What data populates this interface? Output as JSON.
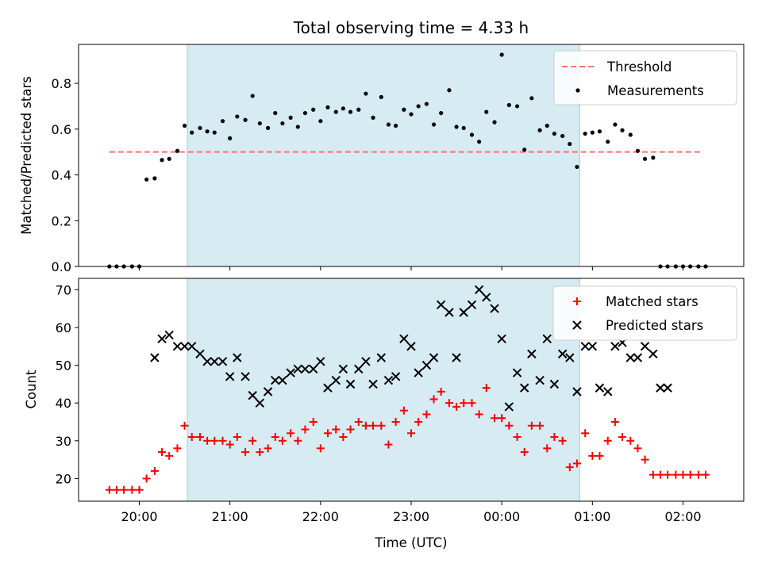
{
  "chart_data": [
    {
      "type": "scatter",
      "title": "Total observing time = 4.33 h",
      "xlabel": "",
      "ylabel": "Matched/Predicted stars",
      "xlim": [
        -0.67,
        6.67
      ],
      "ylim": [
        0,
        0.97
      ],
      "yticks": [
        0.0,
        0.2,
        0.4,
        0.6,
        0.8
      ],
      "ytick_labels": [
        "0.0",
        "0.2",
        "0.4",
        "0.6",
        "0.8"
      ],
      "observing_window": [
        0.53,
        4.86
      ],
      "threshold": {
        "name": "Threshold",
        "value": 0.5,
        "x_range": [
          -0.33,
          6.2
        ],
        "color": "#ff7070",
        "style": "dashed"
      },
      "series": [
        {
          "name": "Measurements",
          "color": "#000000",
          "x": [
            -0.33,
            -0.25,
            -0.17,
            -0.08,
            0.0,
            0.08,
            0.17,
            0.25,
            0.33,
            0.42,
            0.5,
            0.58,
            0.67,
            0.75,
            0.83,
            0.92,
            1.0,
            1.08,
            1.17,
            1.25,
            1.33,
            1.42,
            1.5,
            1.58,
            1.67,
            1.75,
            1.83,
            1.92,
            2.0,
            2.08,
            2.17,
            2.25,
            2.33,
            2.42,
            2.5,
            2.58,
            2.67,
            2.75,
            2.83,
            2.92,
            3.0,
            3.08,
            3.17,
            3.25,
            3.33,
            3.42,
            3.5,
            3.58,
            3.67,
            3.75,
            3.83,
            3.92,
            4.0,
            4.08,
            4.17,
            4.25,
            4.33,
            4.42,
            4.5,
            4.58,
            4.67,
            4.75,
            4.83,
            4.92,
            5.0,
            5.08,
            5.17,
            5.25,
            5.33,
            5.42,
            5.5,
            5.58,
            5.67,
            5.75,
            5.83,
            5.92,
            6.0,
            6.08,
            6.17,
            6.25
          ],
          "values": [
            0.0,
            0.0,
            0.0,
            0.0,
            0.0,
            0.38,
            0.385,
            0.465,
            0.47,
            0.505,
            0.615,
            0.585,
            0.605,
            0.59,
            0.585,
            0.635,
            0.56,
            0.655,
            0.64,
            0.745,
            0.625,
            0.605,
            0.67,
            0.625,
            0.65,
            0.61,
            0.67,
            0.685,
            0.635,
            0.695,
            0.675,
            0.69,
            0.675,
            0.685,
            0.755,
            0.65,
            0.74,
            0.62,
            0.615,
            0.685,
            0.665,
            0.7,
            0.71,
            0.62,
            0.67,
            0.77,
            0.61,
            0.605,
            0.575,
            0.545,
            0.675,
            0.63,
            0.925,
            0.705,
            0.7,
            0.51,
            0.735,
            0.595,
            0.615,
            0.58,
            0.57,
            0.535,
            0.435,
            0.58,
            0.585,
            0.59,
            0.545,
            0.62,
            0.595,
            0.575,
            0.505,
            0.47,
            0.475,
            0.0,
            0.0,
            0.0,
            0.0,
            0.0,
            0.0,
            0.0
          ]
        }
      ],
      "legend": {
        "position": "top-right",
        "entries": [
          "Threshold",
          "Measurements"
        ]
      }
    },
    {
      "type": "scatter",
      "title": "",
      "xlabel": "Time (UTC)",
      "ylabel": "Count",
      "xlim": [
        -0.67,
        6.67
      ],
      "ylim": [
        14,
        73
      ],
      "xticks": [
        0,
        1,
        2,
        3,
        4,
        5,
        6
      ],
      "xtick_labels": [
        "20:00",
        "21:00",
        "22:00",
        "23:00",
        "00:00",
        "01:00",
        "02:00"
      ],
      "yticks": [
        20,
        30,
        40,
        50,
        60,
        70
      ],
      "ytick_labels": [
        "20",
        "30",
        "40",
        "50",
        "60",
        "70"
      ],
      "observing_window": [
        0.53,
        4.86
      ],
      "series": [
        {
          "name": "Matched stars",
          "marker": "plus",
          "color": "#ff0000",
          "x": [
            -0.33,
            -0.25,
            -0.17,
            -0.08,
            0.0,
            0.08,
            0.17,
            0.25,
            0.33,
            0.42,
            0.5,
            0.58,
            0.67,
            0.75,
            0.83,
            0.92,
            1.0,
            1.08,
            1.17,
            1.25,
            1.33,
            1.42,
            1.5,
            1.58,
            1.67,
            1.75,
            1.83,
            1.92,
            2.0,
            2.08,
            2.17,
            2.25,
            2.33,
            2.42,
            2.5,
            2.58,
            2.67,
            2.75,
            2.83,
            2.92,
            3.0,
            3.08,
            3.17,
            3.25,
            3.33,
            3.42,
            3.5,
            3.58,
            3.67,
            3.75,
            3.83,
            3.92,
            4.0,
            4.08,
            4.17,
            4.25,
            4.33,
            4.42,
            4.5,
            4.58,
            4.67,
            4.75,
            4.83,
            4.92,
            5.0,
            5.08,
            5.17,
            5.25,
            5.33,
            5.42,
            5.5,
            5.58,
            5.67,
            5.75,
            5.83,
            5.92,
            6.0,
            6.08,
            6.17,
            6.25
          ],
          "values": [
            17,
            17,
            17,
            17,
            17,
            20,
            22,
            27,
            26,
            28,
            34,
            31,
            31,
            30,
            30,
            30,
            29,
            31,
            27,
            30,
            27,
            28,
            31,
            30,
            32,
            30,
            33,
            35,
            28,
            32,
            33,
            31,
            33,
            35,
            34,
            34,
            34,
            29,
            35,
            38,
            32,
            35,
            37,
            41,
            43,
            40,
            39,
            40,
            40,
            37,
            44,
            36,
            36,
            34,
            31,
            27,
            34,
            34,
            28,
            31,
            30,
            23,
            24,
            32,
            26,
            26,
            30,
            35,
            31,
            30,
            28,
            25,
            21,
            21,
            21,
            21,
            21,
            21,
            21,
            21
          ]
        },
        {
          "name": "Predicted stars",
          "marker": "x",
          "color": "#000000",
          "x": [
            0.17,
            0.25,
            0.33,
            0.42,
            0.5,
            0.58,
            0.67,
            0.75,
            0.83,
            0.92,
            1.0,
            1.08,
            1.17,
            1.25,
            1.33,
            1.42,
            1.5,
            1.58,
            1.67,
            1.75,
            1.83,
            1.92,
            2.0,
            2.08,
            2.17,
            2.25,
            2.33,
            2.42,
            2.5,
            2.58,
            2.67,
            2.75,
            2.83,
            2.92,
            3.0,
            3.08,
            3.17,
            3.25,
            3.33,
            3.42,
            3.5,
            3.58,
            3.67,
            3.75,
            3.83,
            3.92,
            4.0,
            4.08,
            4.17,
            4.25,
            4.33,
            4.42,
            4.5,
            4.58,
            4.67,
            4.75,
            4.83,
            4.92,
            5.0,
            5.08,
            5.17,
            5.25,
            5.33,
            5.42,
            5.5,
            5.58,
            5.67,
            5.75,
            5.83
          ],
          "values": [
            52,
            57,
            58,
            55,
            55,
            55,
            53,
            51,
            51,
            51,
            47,
            52,
            47,
            42,
            40,
            43,
            46,
            46,
            48,
            49,
            49,
            49,
            51,
            44,
            46,
            49,
            45,
            49,
            51,
            45,
            52,
            46,
            47,
            57,
            55,
            48,
            50,
            52,
            66,
            64,
            52,
            64,
            66,
            70,
            68,
            65,
            57,
            39,
            48,
            44,
            53,
            46,
            57,
            45,
            53,
            52,
            43,
            55,
            55,
            44,
            43,
            55,
            56,
            52,
            52,
            55,
            53,
            44,
            44
          ]
        }
      ],
      "legend": {
        "position": "top-right",
        "entries": [
          "Matched stars",
          "Predicted stars"
        ]
      }
    }
  ],
  "colors": {
    "window_fill": "#add8e6",
    "matched": "#ff0000",
    "predicted": "#000000",
    "threshold": "#ff7070"
  }
}
